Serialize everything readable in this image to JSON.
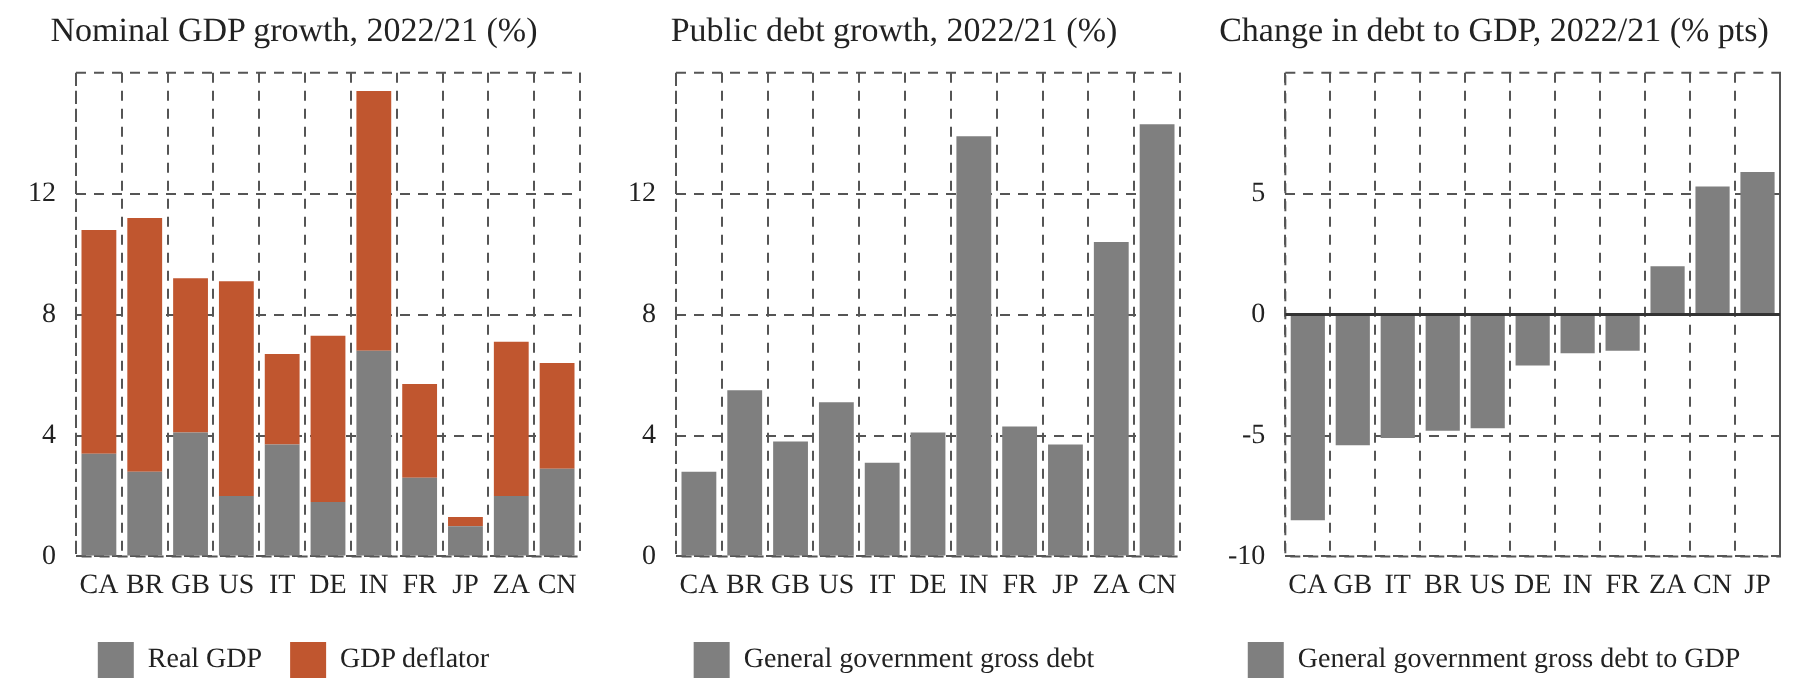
{
  "chart_data": [
    {
      "type": "bar",
      "title": "Nominal GDP growth, 2022/21 (%)",
      "categories": [
        "CA",
        "BR",
        "GB",
        "US",
        "IT",
        "DE",
        "IN",
        "FR",
        "JP",
        "ZA",
        "CN"
      ],
      "stacked": true,
      "series": [
        {
          "name": "Real GDP",
          "color": "#7f7f7f",
          "values": [
            3.4,
            2.8,
            4.1,
            2.0,
            3.7,
            1.8,
            6.8,
            2.6,
            1.0,
            2.0,
            2.9
          ]
        },
        {
          "name": "GDP deflator",
          "color": "#c0562f",
          "values": [
            7.4,
            8.4,
            5.1,
            7.1,
            3.0,
            5.5,
            8.6,
            3.1,
            0.3,
            5.1,
            3.5
          ]
        }
      ],
      "ylim": [
        0,
        16
      ],
      "yticks": [
        0,
        4,
        8,
        12
      ],
      "grid": true,
      "legend": "bottom"
    },
    {
      "type": "bar",
      "title": "Public debt growth, 2022/21 (%)",
      "categories": [
        "CA",
        "BR",
        "GB",
        "US",
        "IT",
        "DE",
        "IN",
        "FR",
        "JP",
        "ZA",
        "CN"
      ],
      "series": [
        {
          "name": "General government gross debt",
          "color": "#7f7f7f",
          "values": [
            2.8,
            5.5,
            3.8,
            5.1,
            3.1,
            4.1,
            13.9,
            4.3,
            3.7,
            10.4,
            14.3
          ]
        }
      ],
      "ylim": [
        0,
        16
      ],
      "yticks": [
        0,
        4,
        8,
        12
      ],
      "grid": true,
      "legend": "bottom"
    },
    {
      "type": "bar",
      "title": "Change in debt to GDP, 2022/21 (% pts)",
      "categories": [
        "CA",
        "GB",
        "IT",
        "BR",
        "US",
        "DE",
        "IN",
        "FR",
        "ZA",
        "CN",
        "JP"
      ],
      "series": [
        {
          "name": "General government gross debt to GDP",
          "color": "#7f7f7f",
          "values": [
            -8.5,
            -5.4,
            -5.1,
            -4.8,
            -4.7,
            -2.1,
            -1.6,
            -1.5,
            2.0,
            5.3,
            5.9
          ]
        }
      ],
      "ylim": [
        -10,
        10
      ],
      "yticks": [
        -10,
        -5,
        0,
        5
      ],
      "grid": true,
      "legend": "bottom",
      "ref_lines": [
        {
          "axis": "y",
          "value": 0,
          "color": "#333333",
          "line_style": "solid"
        }
      ]
    }
  ]
}
